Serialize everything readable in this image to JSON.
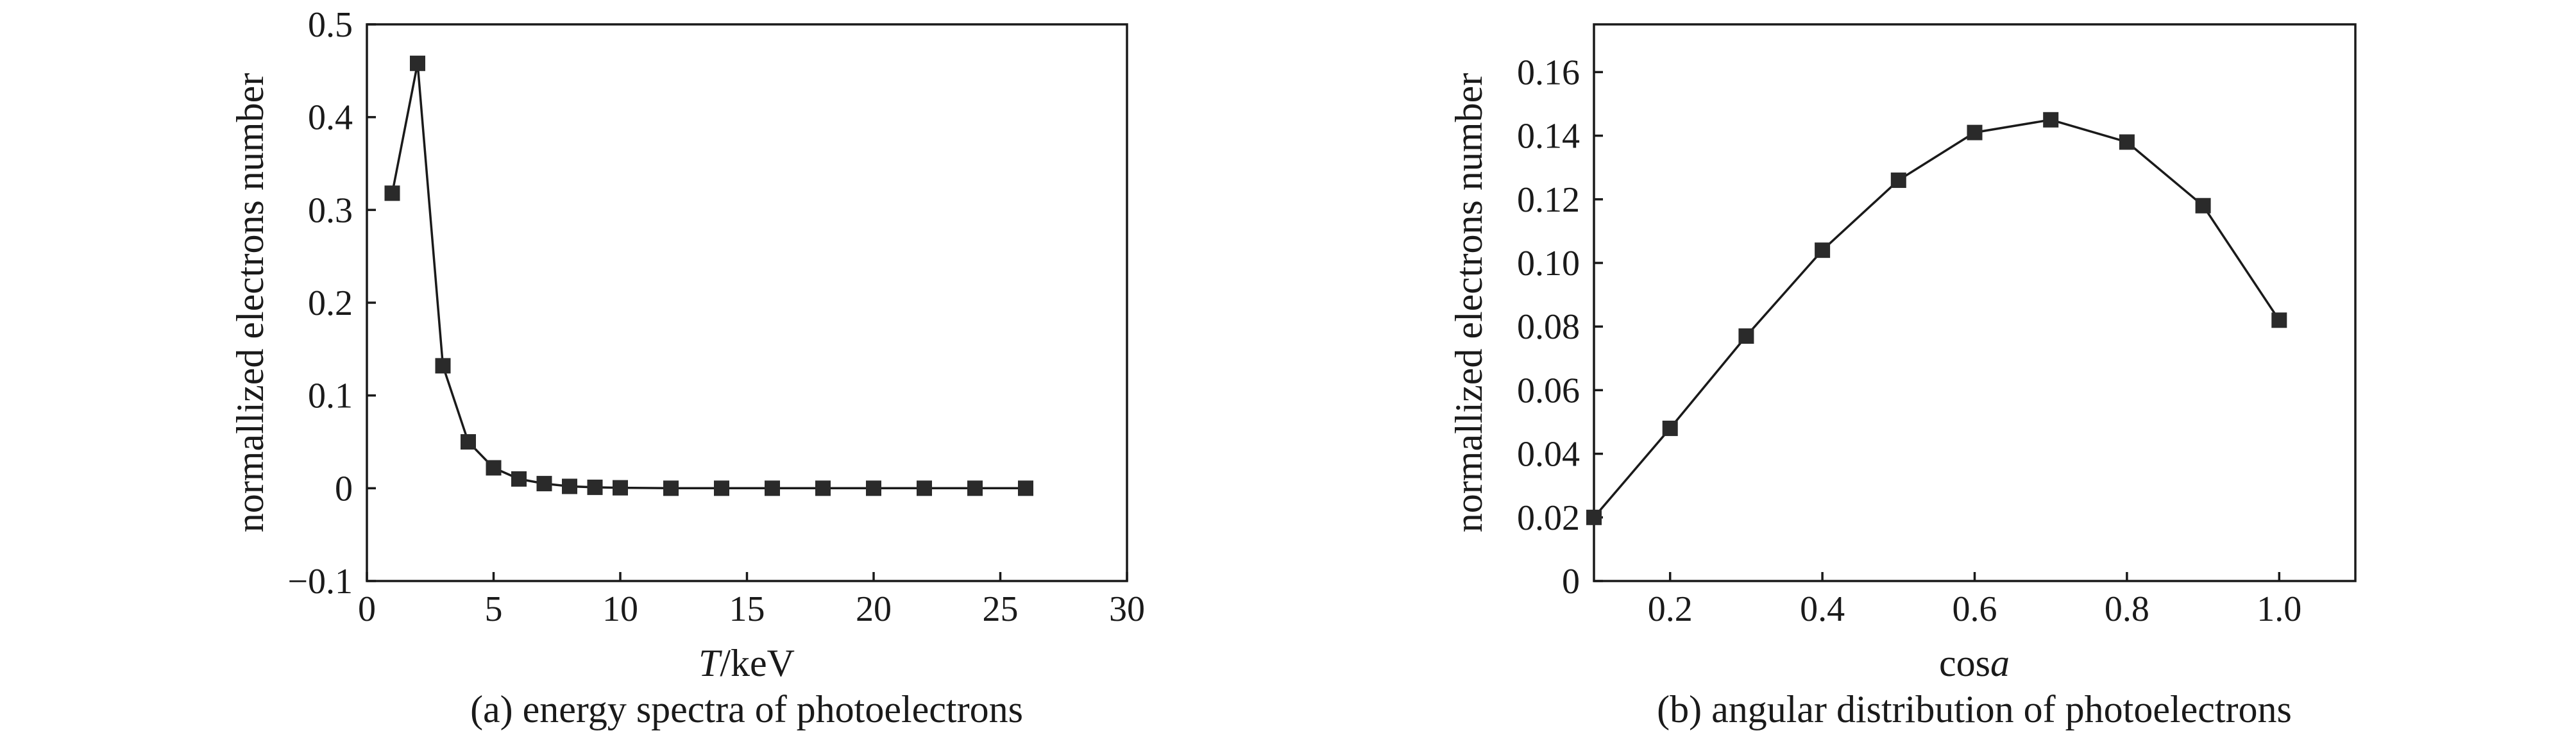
{
  "chart_data": [
    {
      "type": "line",
      "caption": "(a) energy spectra of photoelectrons",
      "xlabel": "keV",
      "xlabel_var": "T",
      "xlabel_sep": "/",
      "ylabel": "normallized electrons number",
      "xlim": [
        0,
        30
      ],
      "ylim": [
        -0.1,
        0.5
      ],
      "xticks": [
        0,
        5,
        10,
        15,
        20,
        25,
        30
      ],
      "yticks": [
        -0.1,
        0,
        0.1,
        0.2,
        0.3,
        0.4,
        0.5
      ],
      "xtick_labels": [
        "0",
        "5",
        "10",
        "15",
        "20",
        "25",
        "30"
      ],
      "ytick_labels": [
        "−0.1",
        "0",
        "0.1",
        "0.2",
        "0.3",
        "0.4",
        "0.5"
      ],
      "grid": false,
      "marker": "square",
      "color": "#2a2a2a",
      "x": [
        1,
        2,
        3,
        4,
        5,
        6,
        7,
        8,
        9,
        10,
        12,
        14,
        16,
        18,
        20,
        22,
        24,
        26
      ],
      "y": [
        0.318,
        0.458,
        0.132,
        0.05,
        0.022,
        0.01,
        0.005,
        0.002,
        0.001,
        0.0005,
        0.0,
        0.0,
        0.0,
        0.0,
        0.0,
        0.0,
        0.0,
        0.0
      ]
    },
    {
      "type": "line",
      "caption": "(b) angular distribution of photoelectrons",
      "xlabel": "cos",
      "xlabel_var": "a",
      "ylabel": "normallized electrons number",
      "xlim": [
        0.1,
        1.1
      ],
      "ylim": [
        0,
        0.175
      ],
      "xticks": [
        0.2,
        0.4,
        0.6,
        0.8,
        1.0
      ],
      "yticks": [
        0,
        0.02,
        0.04,
        0.06,
        0.08,
        0.1,
        0.12,
        0.14,
        0.16
      ],
      "xtick_labels": [
        "0.2",
        "0.4",
        "0.6",
        "0.8",
        "1.0"
      ],
      "ytick_labels": [
        "0",
        "0.02",
        "0.04",
        "0.06",
        "0.08",
        "0.10",
        "0.12",
        "0.14",
        "0.16"
      ],
      "grid": false,
      "marker": "square",
      "color": "#2a2a2a",
      "x": [
        0.1,
        0.2,
        0.3,
        0.4,
        0.5,
        0.6,
        0.7,
        0.8,
        0.9,
        1.0
      ],
      "y": [
        0.02,
        0.048,
        0.077,
        0.104,
        0.126,
        0.141,
        0.145,
        0.138,
        0.118,
        0.082
      ]
    }
  ]
}
